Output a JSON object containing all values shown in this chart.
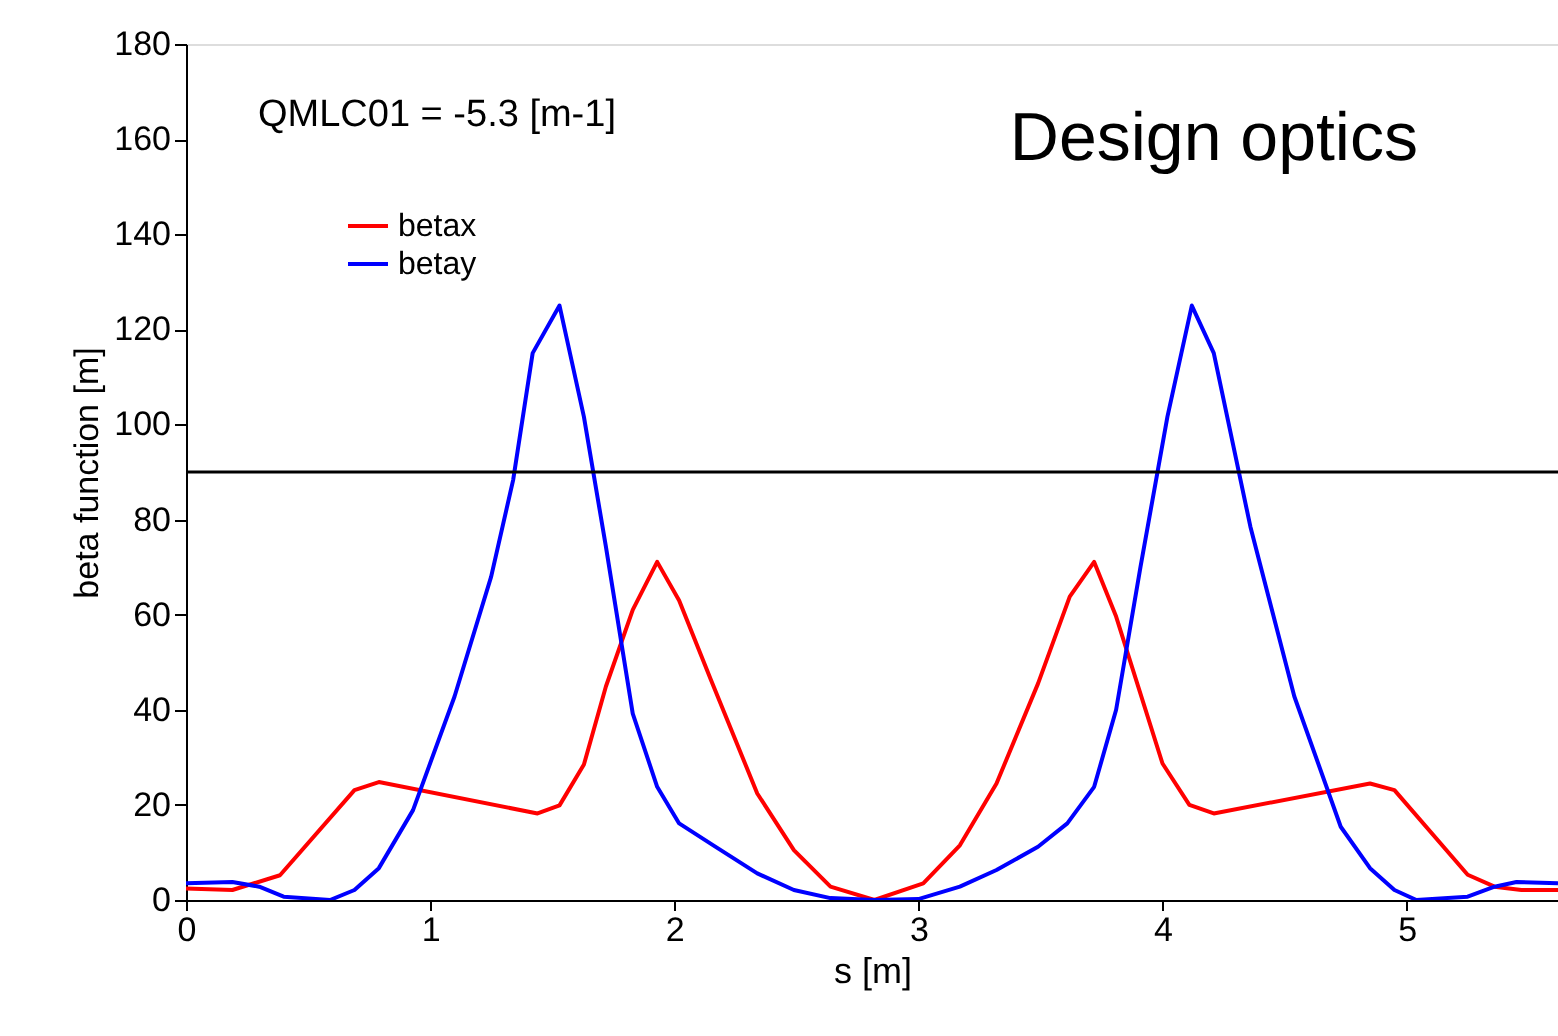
{
  "chart_data": {
    "type": "line",
    "title": "Design optics",
    "xlabel": "s [m]",
    "ylabel": "beta function [m]",
    "annotations": [
      "QMLC01 = -5.3 [m-1]"
    ],
    "xlim": [
      0,
      5.62
    ],
    "xticks": [
      0,
      1,
      2,
      3,
      4,
      5
    ],
    "ylim": [
      0,
      180
    ],
    "yticks": [
      0,
      20,
      40,
      60,
      80,
      100,
      120,
      140,
      160,
      180
    ],
    "grid": false,
    "legend": "top left",
    "marker": "none",
    "line_style": "solid",
    "ref_lines": [
      {
        "axis": "y",
        "value": 90,
        "color": "#000000"
      }
    ],
    "series": [
      {
        "name": "betax",
        "color": "#ff0000",
        "x": [
          0,
          0.19,
          0.385,
          0.69,
          0.79,
          1.44,
          1.53,
          1.63,
          1.72,
          1.83,
          1.93,
          2.02,
          2.15,
          2.34,
          2.49,
          2.64,
          2.82,
          3.02,
          3.17,
          3.32,
          3.49,
          3.62,
          3.72,
          3.81,
          4.0,
          4.11,
          4.21,
          4.85,
          4.95,
          5.25,
          5.36,
          5.47,
          5.62
        ],
        "values": [
          2.4,
          2.1,
          5.2,
          23.1,
          24.8,
          18.2,
          19.9,
          28.5,
          44.9,
          61,
          71.1,
          63,
          46.3,
          22.4,
          10.5,
          2.8,
          0,
          3.5,
          11.5,
          24.5,
          45.5,
          63.8,
          71.1,
          59.6,
          28.7,
          20,
          18.2,
          24.5,
          23.1,
          5.3,
          2.8,
          2.1,
          2.1
        ]
      },
      {
        "name": "betay",
        "color": "#0000ff",
        "x": [
          0,
          0.19,
          0.3,
          0.4,
          0.59,
          0.69,
          0.79,
          0.93,
          1.1,
          1.25,
          1.34,
          1.42,
          1.53,
          1.63,
          1.72,
          1.83,
          1.93,
          2.02,
          2.16,
          2.34,
          2.49,
          2.64,
          2.82,
          3.0,
          3.17,
          3.32,
          3.49,
          3.61,
          3.72,
          3.81,
          3.91,
          4.02,
          4.12,
          4.21,
          4.36,
          4.54,
          4.73,
          4.85,
          4.95,
          5.04,
          5.25,
          5.36,
          5.45,
          5.62
        ],
        "values": [
          3.5,
          3.8,
          2.8,
          0.7,
          0,
          2.1,
          6.7,
          18.9,
          42.8,
          68,
          88.3,
          115,
          125,
          101.6,
          74.3,
          39.2,
          23.8,
          16.1,
          11.5,
          5.6,
          2.1,
          0.4,
          0,
          0.2,
          2.8,
          6.3,
          11.2,
          16.1,
          23.8,
          40,
          70.1,
          101.6,
          125,
          115,
          78.5,
          42.8,
          15.4,
          6.7,
          2.1,
          0,
          0.7,
          2.8,
          3.8,
          3.5
        ]
      }
    ]
  }
}
